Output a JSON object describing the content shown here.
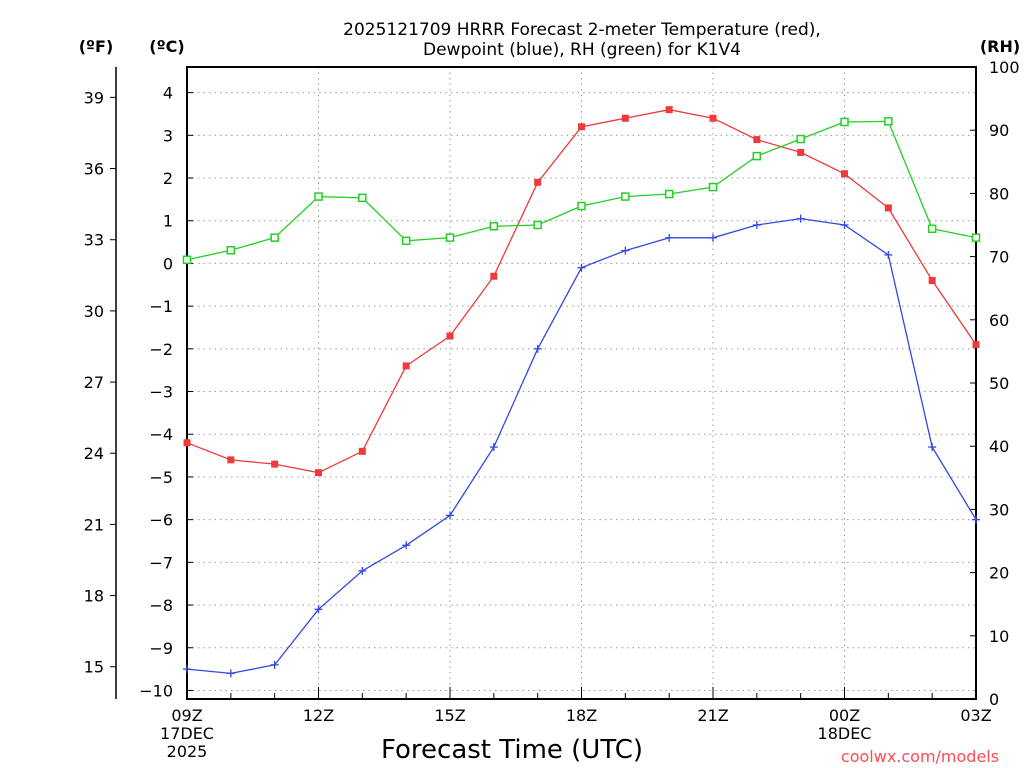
{
  "chart_data": {
    "type": "line",
    "title_line1": "2025121709 HRRR Forecast 2-meter Temperature (red),",
    "title_line2": "Dewpoint (blue), RH (green) for K1V4",
    "xlabel": "Forecast Time (UTC)",
    "credit": "coolwx.com/models",
    "units": {
      "fahrenheit": "(ºF)",
      "celsius": "(ºC)",
      "rh": "(RH)"
    },
    "x_hours": [
      0,
      1,
      2,
      3,
      4,
      5,
      6,
      7,
      8,
      9,
      10,
      11,
      12,
      13,
      14,
      15,
      16,
      17,
      18
    ],
    "xlim": [
      0,
      18
    ],
    "x_ticks": [
      {
        "hour": 0,
        "lines": [
          "09Z",
          "17DEC",
          "2025"
        ]
      },
      {
        "hour": 3,
        "lines": [
          "12Z"
        ]
      },
      {
        "hour": 6,
        "lines": [
          "15Z"
        ]
      },
      {
        "hour": 9,
        "lines": [
          "18Z"
        ]
      },
      {
        "hour": 12,
        "lines": [
          "21Z"
        ]
      },
      {
        "hour": 15,
        "lines": [
          "00Z",
          "18DEC"
        ]
      },
      {
        "hour": 18,
        "lines": [
          "03Z"
        ]
      }
    ],
    "ylim_celsius": [
      -10.2,
      4.6
    ],
    "celsius_ticks": [
      "4",
      "3",
      "2",
      "1",
      "0",
      "-1",
      "-2",
      "-3",
      "-4",
      "-5",
      "-6",
      "-7",
      "-8",
      "-9",
      "-10"
    ],
    "fahrenheit_ticks": [
      "39",
      "36",
      "33",
      "30",
      "27",
      "24",
      "21",
      "18",
      "15"
    ],
    "ylim_rh": [
      0,
      100
    ],
    "rh_ticks": [
      "100",
      "90",
      "80",
      "70",
      "60",
      "50",
      "40",
      "30",
      "20",
      "10",
      "0"
    ],
    "series": [
      {
        "name": "Temperature",
        "unit": "C",
        "color": "#ee3a3a",
        "marker": "filled-square",
        "values": [
          -4.2,
          -4.6,
          -4.7,
          -4.9,
          -4.4,
          -2.4,
          -1.7,
          -0.3,
          1.9,
          3.2,
          3.4,
          3.6,
          3.4,
          2.9,
          2.6,
          2.1,
          1.3,
          -0.4,
          -1.9
        ]
      },
      {
        "name": "Dewpoint",
        "unit": "C",
        "color": "#3448e0",
        "marker": "plus",
        "values": [
          -9.5,
          -9.6,
          -9.4,
          -8.1,
          -7.2,
          -6.6,
          -5.9,
          -4.3,
          -2.0,
          -0.1,
          0.3,
          0.6,
          0.6,
          0.9,
          1.05,
          0.9,
          0.2,
          -4.3,
          -6.0
        ]
      },
      {
        "name": "RH",
        "unit": "%",
        "color": "#22d022",
        "marker": "open-square",
        "values": [
          69.5,
          71,
          73,
          79.5,
          79.3,
          72.5,
          73,
          74.8,
          75,
          78,
          79.5,
          79.9,
          81,
          85.9,
          88.6,
          91.3,
          91.4,
          74.4,
          73
        ]
      }
    ]
  }
}
